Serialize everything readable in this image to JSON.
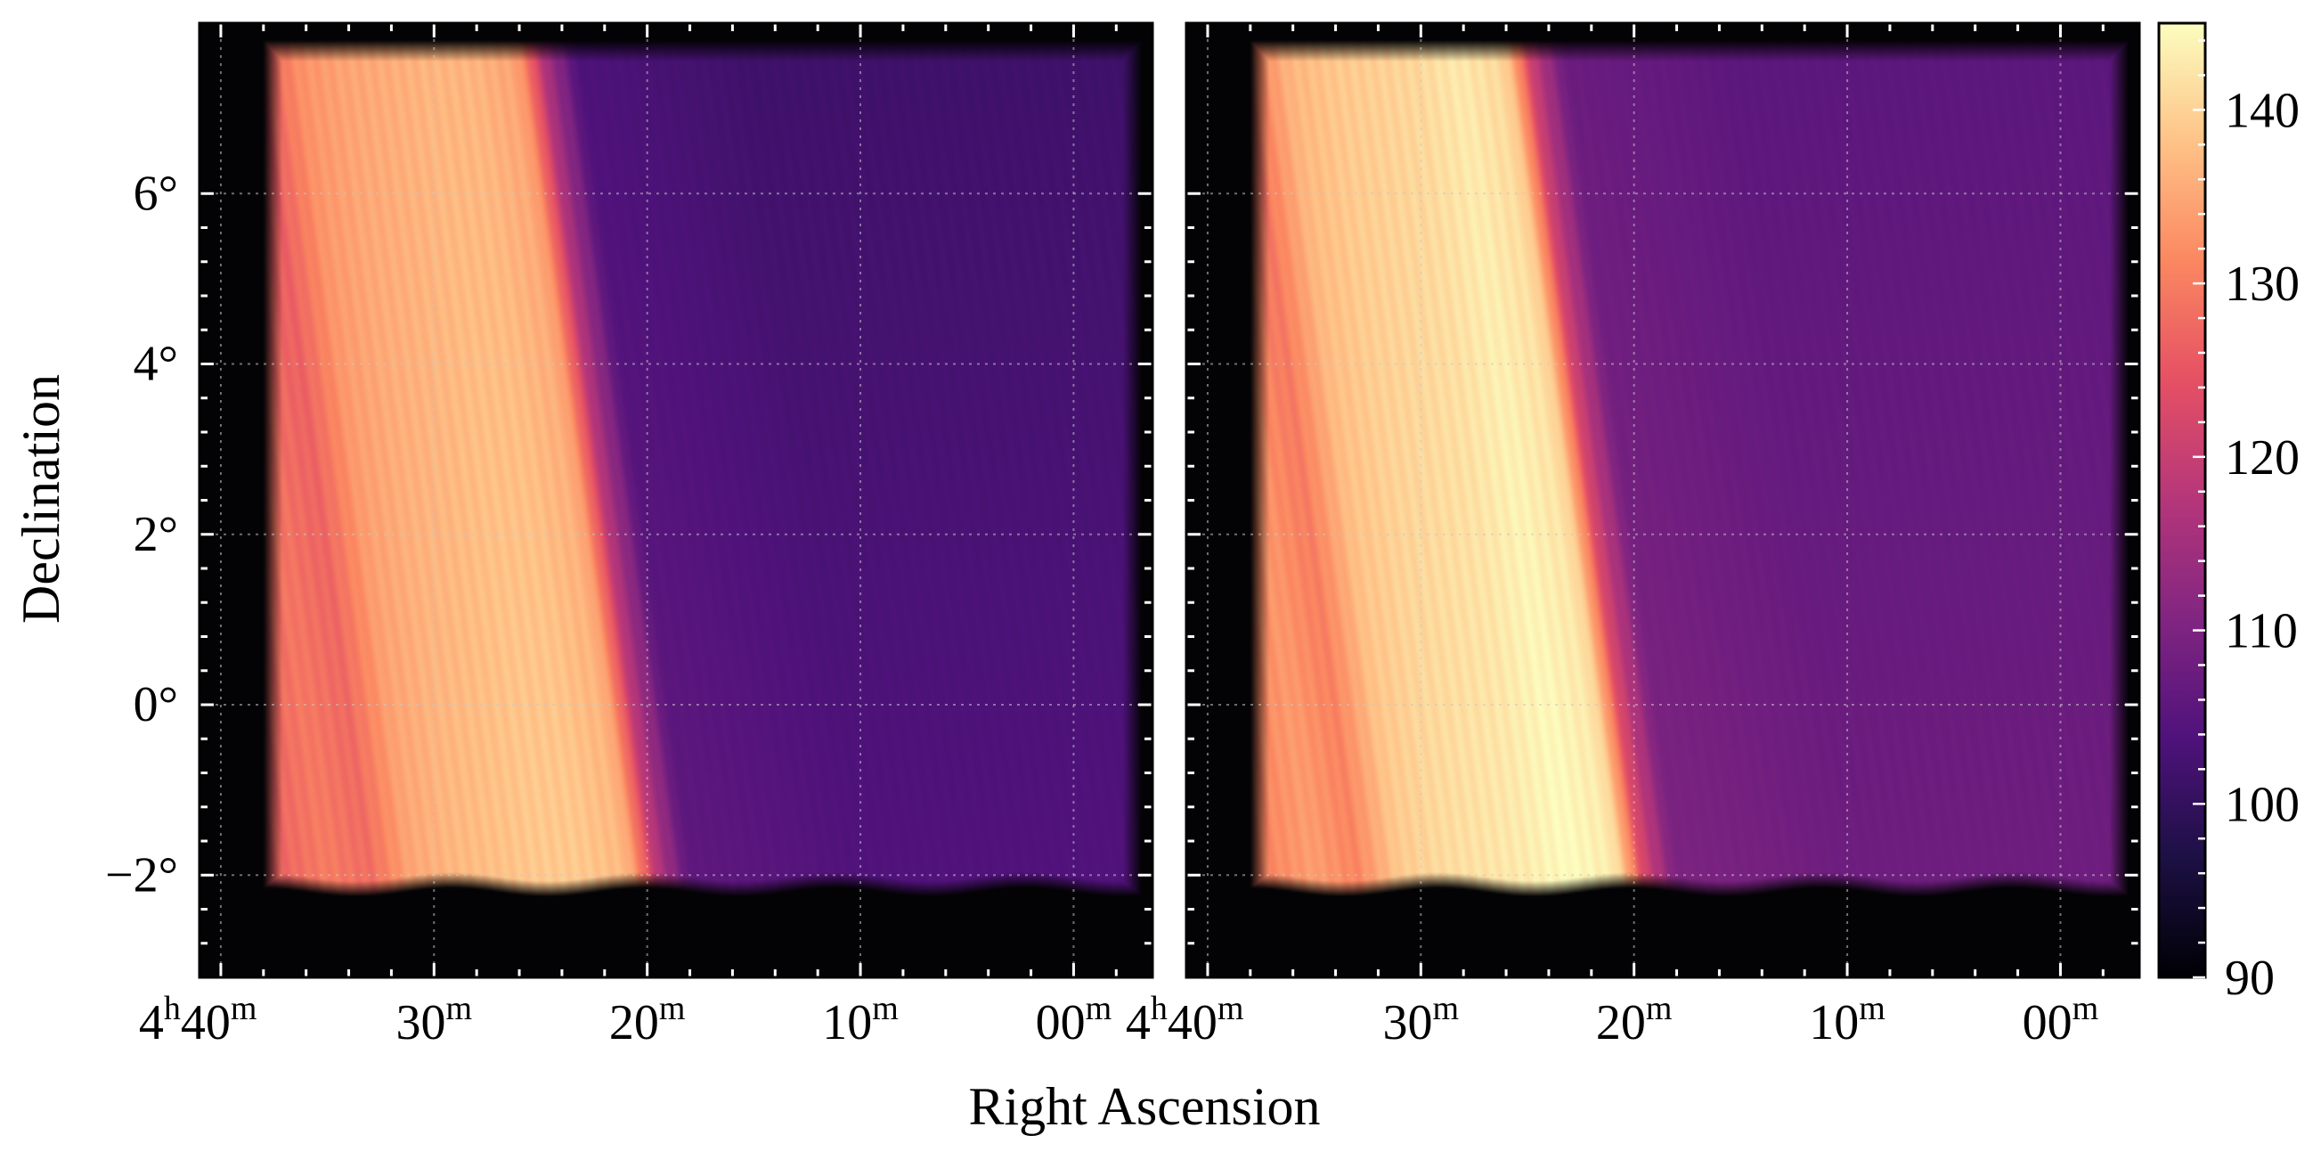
{
  "chart_data": {
    "type": "heatmap",
    "xlabel": "Right Ascension",
    "ylabel": "Declination",
    "x_unit": "right ascension (minutes past 4h00m)",
    "y_unit": "degrees",
    "xlim": [
      41.0,
      -3.7
    ],
    "ylim": [
      -3.2,
      8.0
    ],
    "x_ticks": [
      {
        "value": 40,
        "label_h": "4",
        "label_m": "40"
      },
      {
        "value": 30,
        "label_h": "",
        "label_m": "30"
      },
      {
        "value": 20,
        "label_h": "",
        "label_m": "20"
      },
      {
        "value": 10,
        "label_h": "",
        "label_m": "10"
      },
      {
        "value": 0,
        "label_h": "",
        "label_m": "00"
      }
    ],
    "y_ticks": [
      {
        "value": 6,
        "label": "6°"
      },
      {
        "value": 4,
        "label": "4°"
      },
      {
        "value": 2,
        "label": "2°"
      },
      {
        "value": 0,
        "label": "0°"
      },
      {
        "value": -2,
        "label": "−2°"
      }
    ],
    "grid": true,
    "colormap": "magma",
    "colorbar": {
      "min": 90,
      "max": 145,
      "ticks": [
        90,
        100,
        110,
        120,
        130,
        140
      ],
      "tick_labels": [
        "90",
        "100",
        "110",
        "120",
        "130",
        "140"
      ]
    },
    "panels": [
      {
        "position": "left",
        "coverage_ra": [
          38.0,
          -3.2
        ],
        "coverage_dec": [
          -2.2,
          7.8
        ],
        "background_value": 104,
        "band_profile": {
          "ra_at_dec_minus2": [
            38,
            35,
            33,
            31,
            29,
            27,
            25,
            23,
            21,
            20.5,
            19.5,
            18,
            10,
            -3
          ],
          "values": [
            126,
            130,
            128,
            135,
            137,
            138,
            139,
            139,
            137,
            133,
            118,
            106,
            104,
            104
          ]
        },
        "slant_ra_per_deg_dec": 0.55
      },
      {
        "position": "right",
        "coverage_ra": [
          38.0,
          -3.2
        ],
        "coverage_dec": [
          -2.2,
          7.8
        ],
        "background_value": 108,
        "band_profile": {
          "ra_at_dec_minus2": [
            38,
            35,
            33,
            31,
            29,
            27,
            25,
            23,
            21,
            20.5,
            19.5,
            18,
            10,
            -3
          ],
          "values": [
            130,
            134,
            131,
            139,
            141,
            142,
            143,
            145,
            143,
            139,
            122,
            110,
            108,
            108
          ]
        },
        "slant_ra_per_deg_dec": 0.55
      }
    ]
  },
  "palette": {
    "magma": [
      "#000004",
      "#1c1044",
      "#4f127b",
      "#812581",
      "#b5367a",
      "#e55064",
      "#fb8761",
      "#fec287",
      "#fcfdbf"
    ],
    "outside": "#030305",
    "grid": "#c8c8c8",
    "tick": "#ffffff",
    "frame": "#000000"
  }
}
